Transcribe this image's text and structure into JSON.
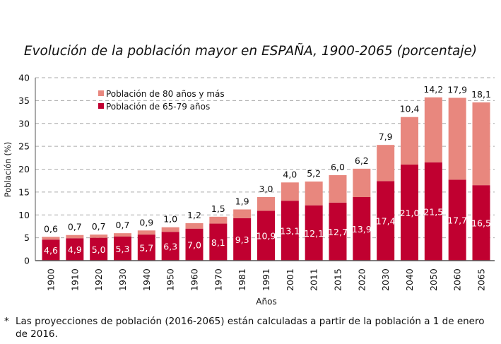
{
  "chart_data": {
    "type": "bar",
    "stacked": true,
    "title": "Evolución de la población mayor en ESPAÑA, 1900-2065 (porcentaje)",
    "xlabel": "Años",
    "ylabel": "Población (%)",
    "ylim": [
      0,
      40
    ],
    "yticks": [
      0,
      5,
      10,
      15,
      20,
      25,
      30,
      35,
      40
    ],
    "grid": true,
    "legend_position": "top-left",
    "categories": [
      "1900",
      "1910",
      "1920",
      "1930",
      "1940",
      "1950",
      "1960",
      "1970",
      "1981",
      "1991",
      "2001",
      "2011",
      "2015",
      "2020",
      "2030",
      "2040",
      "2050",
      "2060",
      "2065"
    ],
    "series": [
      {
        "name": "Población de 65-79 años",
        "color": "#c00030",
        "values": [
          4.6,
          4.9,
          5.0,
          5.3,
          5.7,
          6.3,
          7.0,
          8.1,
          9.3,
          10.9,
          13.1,
          12.1,
          12.7,
          13.9,
          17.4,
          21.0,
          21.5,
          17.7,
          16.5
        ],
        "labels": [
          "4,6",
          "4,9",
          "5,0",
          "5,3",
          "5,7",
          "6,3",
          "7,0",
          "8,1",
          "9,3",
          "10,9",
          "13,1",
          "12,1",
          "12,7",
          "13,9",
          "17,4",
          "21,0",
          "21,5",
          "17,7",
          "16,5"
        ]
      },
      {
        "name": "Población de 80 años y más",
        "color": "#e8877e",
        "values": [
          0.6,
          0.7,
          0.7,
          0.7,
          0.9,
          1.0,
          1.2,
          1.5,
          1.9,
          3.0,
          4.0,
          5.2,
          6.0,
          6.2,
          7.9,
          10.4,
          14.2,
          17.9,
          18.1
        ],
        "labels": [
          "0,6",
          "0,7",
          "0,7",
          "0,7",
          "0,9",
          "1,0",
          "1,2",
          "1,5",
          "1,9",
          "3,0",
          "4,0",
          "5,2",
          "6,0",
          "6,2",
          "7,9",
          "10,4",
          "14,2",
          "17,9",
          "18,1"
        ]
      }
    ]
  },
  "footnote": {
    "marker": "*",
    "text": "Las proyecciones de población (2016-2065) están calculadas a partir de la población a 1 de enero de 2016."
  }
}
